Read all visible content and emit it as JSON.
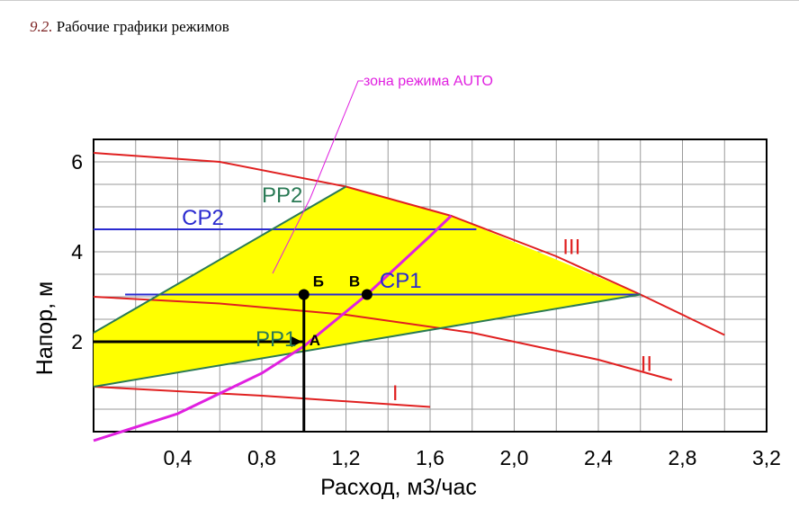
{
  "heading": {
    "number": "9.2.",
    "text": "Рабочие графики режимов"
  },
  "chart_data": {
    "type": "line",
    "xlabel": "Расход, м3/час",
    "ylabel": "Напор, м",
    "xlim": [
      0,
      3.2
    ],
    "ylim": [
      0,
      6.5
    ],
    "x_ticks": [
      "0,4",
      "0,8",
      "1,2",
      "1,6",
      "2,0",
      "2,4",
      "2,8",
      "3,2"
    ],
    "y_ticks": [
      "2",
      "4",
      "6"
    ],
    "grid": true,
    "annotation": "зона режима AUTO",
    "zone_color": "#ffff00",
    "zone_polygon": [
      [
        0,
        1.0
      ],
      [
        0,
        2.2
      ],
      [
        1.2,
        5.45
      ],
      [
        1.7,
        4.8
      ],
      [
        2.6,
        3.05
      ]
    ],
    "curves": [
      {
        "name": "III",
        "color": "#e02020",
        "x": [
          0,
          0.6,
          1.2,
          1.7,
          2.2,
          2.6,
          3.0
        ],
        "y": [
          6.2,
          6.0,
          5.45,
          4.8,
          3.9,
          3.05,
          2.15
        ]
      },
      {
        "name": "II",
        "color": "#e02020",
        "x": [
          0,
          0.6,
          1.2,
          1.8,
          2.4,
          2.75
        ],
        "y": [
          3.0,
          2.85,
          2.6,
          2.2,
          1.6,
          1.15
        ]
      },
      {
        "name": "I",
        "color": "#e02020",
        "x": [
          0,
          0.8,
          1.6
        ],
        "y": [
          1.0,
          0.8,
          0.55
        ]
      },
      {
        "name": "СР2",
        "color": "#2a2ad0",
        "x": [
          0,
          1.82
        ],
        "y": [
          4.5,
          4.5
        ]
      },
      {
        "name": "СР1",
        "color": "#2a2ad0",
        "x": [
          0.15,
          2.6
        ],
        "y": [
          3.05,
          3.05
        ]
      },
      {
        "name": "РР2",
        "color": "#2a7a55",
        "x": [
          0,
          1.2
        ],
        "y": [
          2.2,
          5.45
        ]
      },
      {
        "name": "РР1",
        "color": "#2a7a55",
        "x": [
          0,
          2.6
        ],
        "y": [
          1.0,
          3.05
        ]
      },
      {
        "name": "",
        "color": "#e020e0",
        "x": [
          0,
          0.4,
          0.8,
          1.0,
          1.3,
          1.6,
          1.7
        ],
        "y": [
          -0.2,
          0.4,
          1.3,
          1.9,
          3.05,
          4.35,
          4.8
        ]
      }
    ],
    "labels": [
      {
        "text": "РР2",
        "x": 0.8,
        "y": 5.1,
        "color": "#2a7a55"
      },
      {
        "text": "СР2",
        "x": 0.42,
        "y": 4.6,
        "color": "#2a2ad0"
      },
      {
        "text": "СР1",
        "x": 1.36,
        "y": 3.2,
        "color": "#2a2ad0"
      },
      {
        "text": "РР1",
        "x": 0.77,
        "y": 1.9,
        "color": "#2a7a55"
      },
      {
        "text": "III",
        "x": 2.23,
        "y": 3.95,
        "color": "#e02020"
      },
      {
        "text": "II",
        "x": 2.6,
        "y": 1.35,
        "color": "#e02020"
      },
      {
        "text": "I",
        "x": 1.42,
        "y": 0.7,
        "color": "#e02020"
      }
    ],
    "points": [
      {
        "label": "Б",
        "x": 1.0,
        "y": 3.05
      },
      {
        "label": "В",
        "x": 1.3,
        "y": 3.05
      },
      {
        "label": "А",
        "x": 1.0,
        "y": 2.0
      }
    ],
    "guide_lines": {
      "x": 1.0,
      "y": 2.0
    }
  }
}
